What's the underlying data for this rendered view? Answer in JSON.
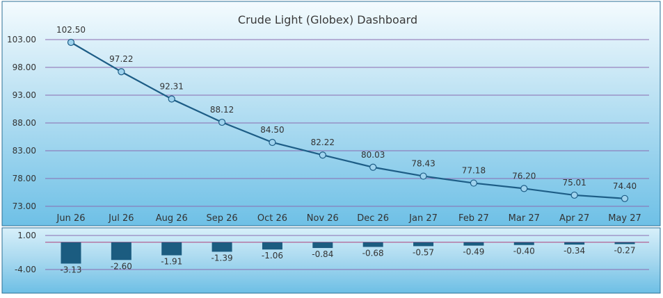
{
  "chart_data": [
    {
      "type": "line",
      "title": "Crude Light (Globex) Dashboard",
      "categories": [
        "Jun 26",
        "Jul 26",
        "Aug 26",
        "Sep 26",
        "Oct 26",
        "Nov 26",
        "Dec 26",
        "Jan 27",
        "Feb 27",
        "Mar 27",
        "Apr 27",
        "May 27"
      ],
      "values": [
        102.5,
        97.22,
        92.31,
        88.12,
        84.5,
        82.22,
        80.03,
        78.43,
        77.18,
        76.2,
        75.01,
        74.4
      ],
      "value_labels": [
        "102.50",
        "97.22",
        "92.31",
        "88.12",
        "84.50",
        "82.22",
        "80.03",
        "78.43",
        "77.18",
        "76.20",
        "75.01",
        "74.40"
      ],
      "ylim": [
        73.0,
        103.0
      ],
      "yticks": [
        "103.00",
        "98.00",
        "93.00",
        "88.00",
        "83.00",
        "78.00",
        "73.00"
      ],
      "grid": true,
      "colors": {
        "line": "#1d5d86",
        "marker_fill": "#9fd3ee",
        "grid": "#8a6bb0"
      }
    },
    {
      "type": "bar",
      "categories": [
        "Jun 26",
        "Jul 26",
        "Aug 26",
        "Sep 26",
        "Oct 26",
        "Nov 26",
        "Dec 26",
        "Jan 27",
        "Feb 27",
        "Mar 27",
        "Apr 27",
        "May 27"
      ],
      "values": [
        -3.13,
        -2.6,
        -1.91,
        -1.39,
        -1.06,
        -0.84,
        -0.68,
        -0.57,
        -0.49,
        -0.4,
        -0.34,
        -0.27
      ],
      "value_labels": [
        "-3.13",
        "-2.60",
        "-1.91",
        "-1.39",
        "-1.06",
        "-0.84",
        "-0.68",
        "-0.57",
        "-0.49",
        "-0.40",
        "-0.34",
        "-0.27"
      ],
      "ylim": [
        -4.0,
        1.0
      ],
      "yticks": [
        "1.00",
        "-4.00"
      ],
      "grid": true,
      "colors": {
        "bar": "#1b5c80",
        "grid": "#8a6bb0",
        "zero_line": "#b0407a"
      }
    }
  ]
}
